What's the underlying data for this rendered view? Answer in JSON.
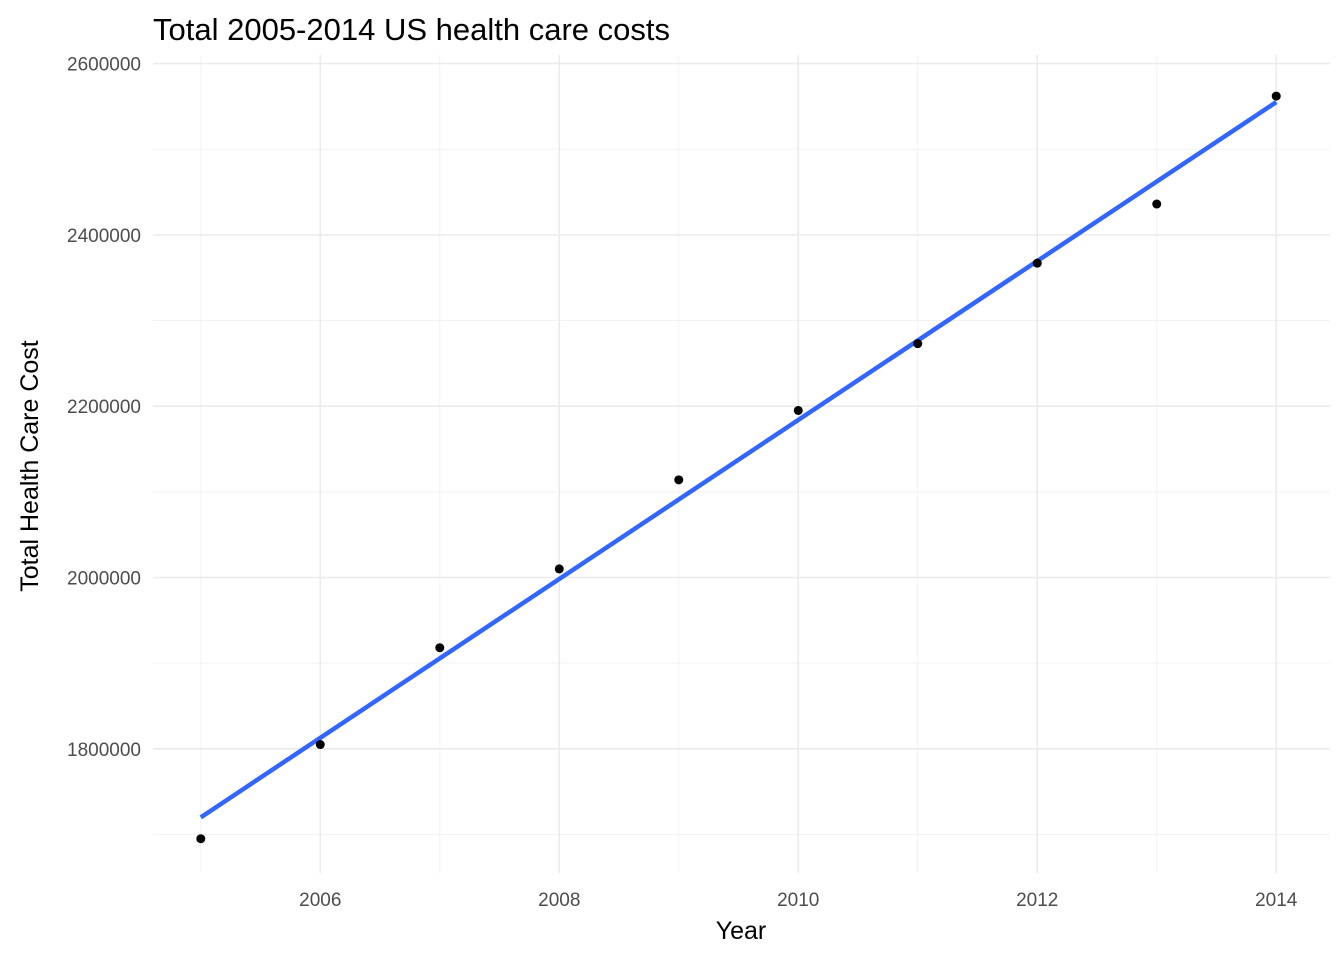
{
  "chart_data": {
    "type": "scatter",
    "title": "Total 2005-2014 US health care costs",
    "xlabel": "Year",
    "ylabel": "Total Health Care Cost",
    "xlim": [
      2004.6,
      2014.45
    ],
    "ylim": [
      1655000,
      2610000
    ],
    "x_ticks": [
      2006,
      2008,
      2010,
      2012,
      2014
    ],
    "y_ticks": [
      1800000,
      2000000,
      2200000,
      2400000,
      2600000
    ],
    "grid": true,
    "legend": "none",
    "points": [
      {
        "x": 2005,
        "y": 1695000
      },
      {
        "x": 2006,
        "y": 1805000
      },
      {
        "x": 2007,
        "y": 1918000
      },
      {
        "x": 2008,
        "y": 2010000
      },
      {
        "x": 2009,
        "y": 2114000
      },
      {
        "x": 2010,
        "y": 2195000
      },
      {
        "x": 2011,
        "y": 2273000
      },
      {
        "x": 2012,
        "y": 2367000
      },
      {
        "x": 2013,
        "y": 2436000
      },
      {
        "x": 2014,
        "y": 2562000
      }
    ],
    "trend_line": {
      "x": [
        2005,
        2014
      ],
      "y": [
        1720000,
        2555000
      ],
      "color": "#3366FF"
    },
    "point_color": "#000000"
  }
}
